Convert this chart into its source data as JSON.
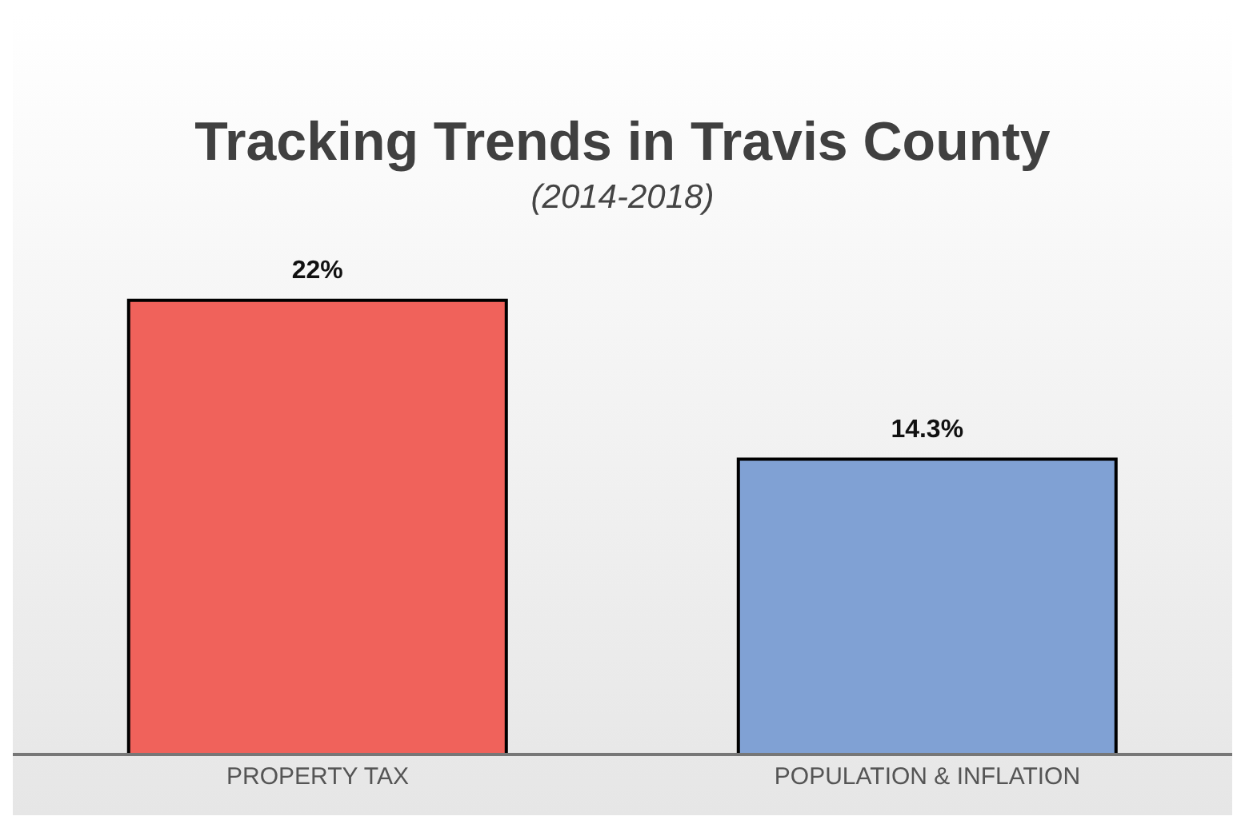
{
  "chart_data": {
    "type": "bar",
    "title": "Tracking Trends in Travis County",
    "subtitle": "(2014-2018)",
    "categories": [
      "PROPERTY TAX",
      "POPULATION & INFLATION"
    ],
    "values": [
      22,
      14.3
    ],
    "colors": [
      "#f0625b",
      "#80a1d4"
    ],
    "value_labels": [
      "22%",
      "14.3%"
    ],
    "tick_labels": "x"
  }
}
